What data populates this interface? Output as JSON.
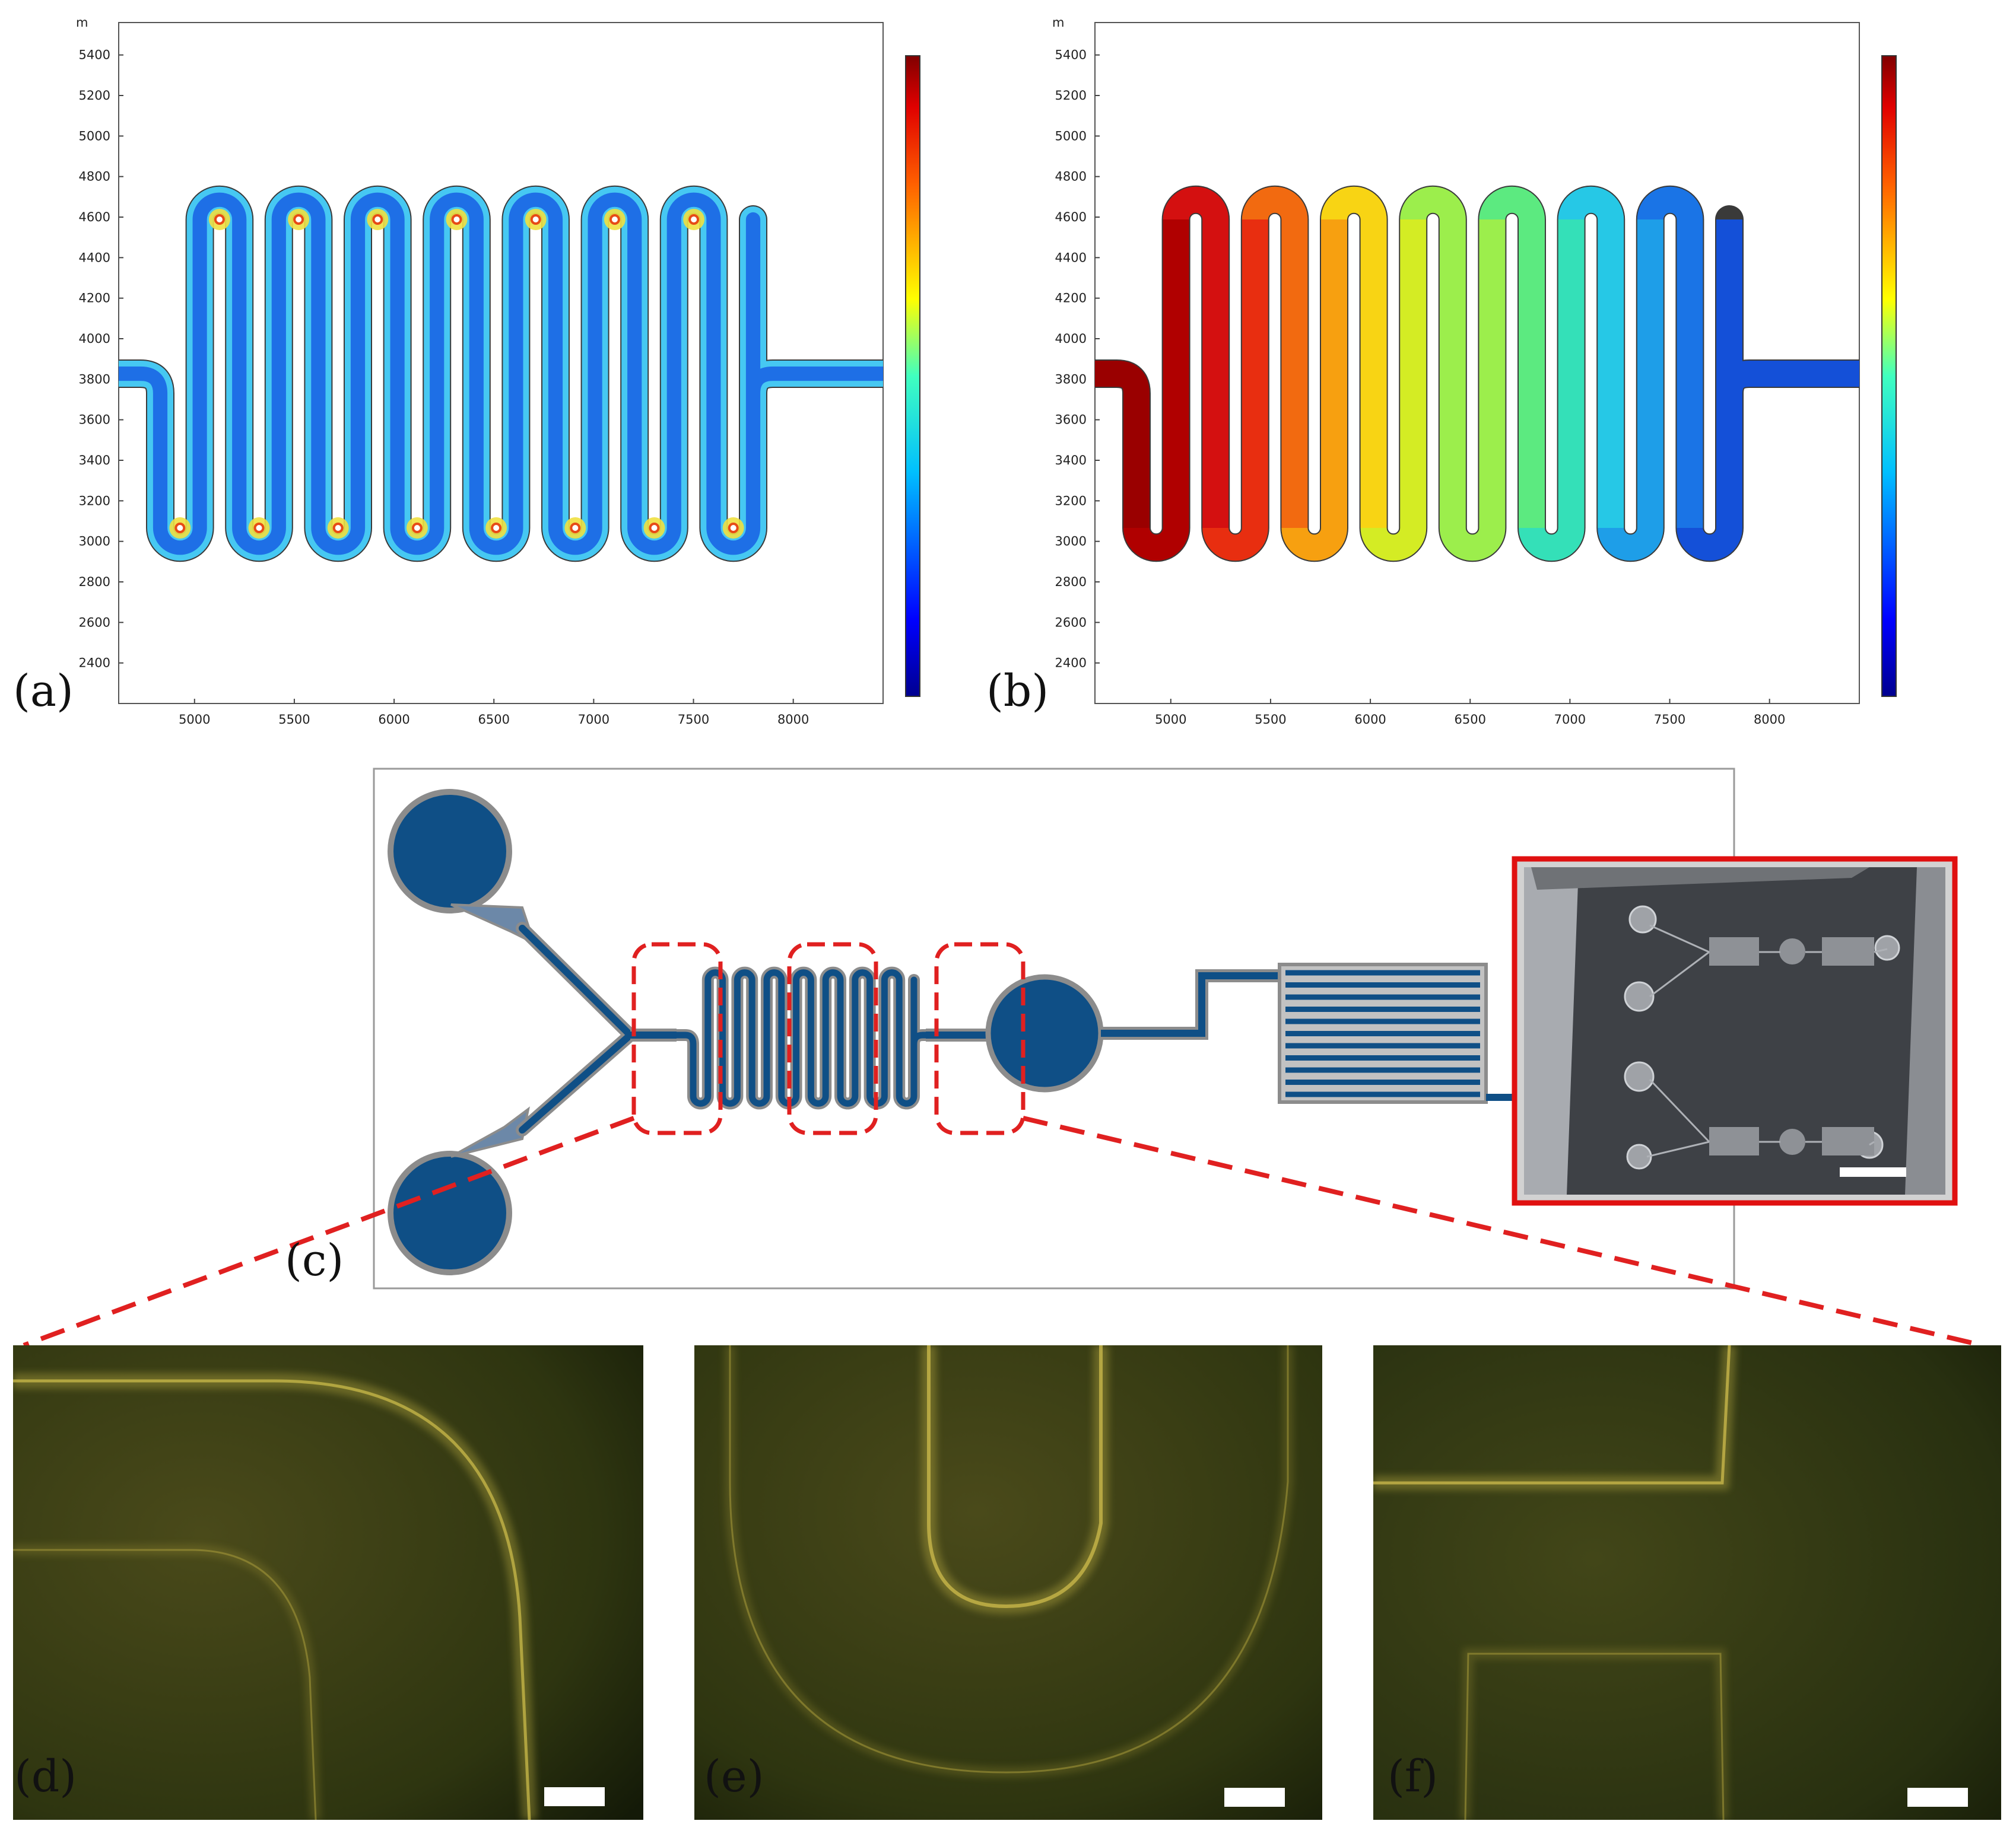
{
  "figure": {
    "panels": [
      {
        "id": "a",
        "label": "(a)"
      },
      {
        "id": "b",
        "label": "(b)"
      },
      {
        "id": "c",
        "label": "(c)"
      },
      {
        "id": "d",
        "label": "(d)"
      },
      {
        "id": "e",
        "label": "(e)"
      },
      {
        "id": "f",
        "label": "(f)"
      }
    ],
    "colors": {
      "channel_blue": "#0f4f86",
      "zoom_dash_red": "#e02020",
      "inset_frame_red": "#e01010",
      "micrograph_background": "#2b3210",
      "micrograph_glow": "#c8b846"
    }
  },
  "chart_data": [
    {
      "type": "heatmap",
      "panel": "a",
      "unit_label": "m",
      "x_ticks": [
        5000,
        5500,
        6000,
        6500,
        7000,
        7500,
        8000
      ],
      "y_ticks": [
        2400,
        2600,
        2800,
        3000,
        3200,
        3400,
        3600,
        3800,
        4000,
        4200,
        4400,
        4600,
        4800,
        5000,
        5200,
        5400
      ],
      "xlim": [
        4620,
        8450
      ],
      "ylim": [
        2200,
        5560
      ],
      "colorbar": "rainbow, unlabeled",
      "field": "velocity magnitude pattern: low (blue) in channel centers, higher (yellow/red) at inner bends"
    },
    {
      "type": "heatmap",
      "panel": "b",
      "unit_label": "m",
      "x_ticks": [
        5000,
        5500,
        6000,
        6500,
        7000,
        7500,
        8000
      ],
      "y_ticks": [
        2400,
        2600,
        2800,
        3000,
        3200,
        3400,
        3600,
        3800,
        4000,
        4200,
        4400,
        4600,
        4800,
        5000,
        5200,
        5400
      ],
      "xlim": [
        4620,
        8450
      ],
      "ylim": [
        2200,
        5560
      ],
      "colorbar": "rainbow, unlabeled",
      "field": "gradient from red at inlet (left) to blue at outlet (right)"
    }
  ]
}
